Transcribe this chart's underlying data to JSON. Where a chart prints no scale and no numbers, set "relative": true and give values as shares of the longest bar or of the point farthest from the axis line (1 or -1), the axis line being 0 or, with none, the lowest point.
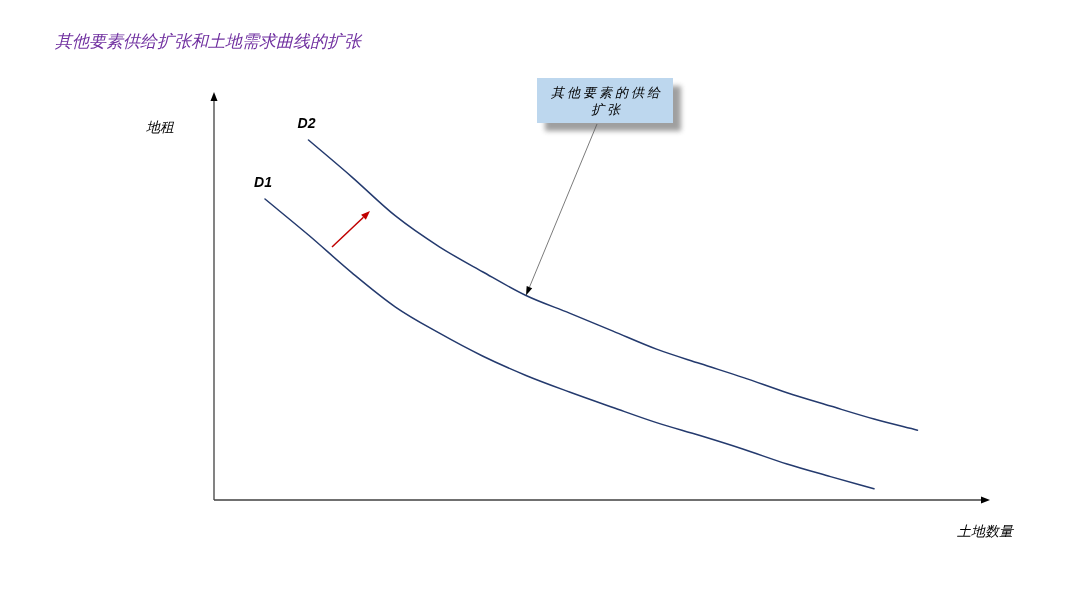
{
  "chart_data": {
    "type": "line",
    "title": "其他要素供给扩张和土地需求曲线的扩张",
    "xlabel": "土地数量",
    "ylabel": "地租",
    "relative": true,
    "categories": [
      null,
      null,
      null,
      null,
      null,
      null,
      null,
      null,
      null,
      null,
      null,
      null,
      null,
      null,
      null,
      null
    ],
    "series": [
      {
        "name": "D1",
        "color": "#243a6e",
        "values": [
          0.836,
          0.736,
          0.631,
          0.536,
          0.464,
          0.4,
          0.346,
          0.3,
          0.257,
          0.215,
          0.179,
          0.141,
          0.1,
          0.065,
          0.031,
          null
        ]
      },
      {
        "name": "D2",
        "color": "#243a6e",
        "values": [
          null,
          1,
          0.897,
          0.789,
          0.704,
          0.634,
          0.568,
          0.519,
          0.469,
          0.419,
          0.379,
          0.34,
          0.298,
          0.261,
          0.225,
          0.194
        ]
      }
    ],
    "annotations": [
      "其他要素的供给扩张"
    ]
  }
}
